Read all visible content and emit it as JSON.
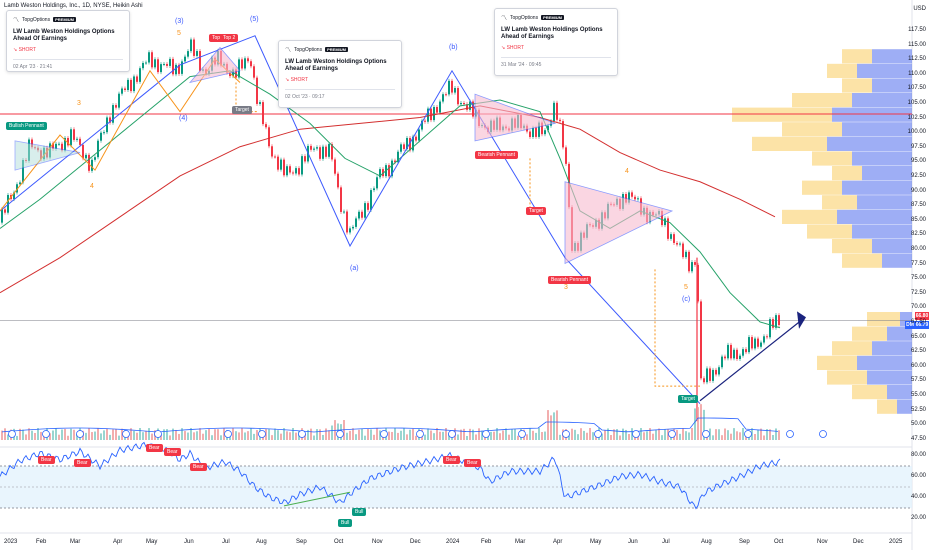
{
  "header": {
    "symbol_title": "Lamb Weston Holdings, Inc., 1D, NYSE, Heikin Ashi",
    "currency": "USD"
  },
  "ideas": [
    {
      "brand": "TopgOptions",
      "badge": "PREMIUM",
      "title": "LW Lamb Weston Holdings Options Ahead Of Earnings",
      "direction": "SHORT",
      "date": "02 Apr '23 · 21:41"
    },
    {
      "brand": "TopgOptions",
      "badge": "PREMIUM",
      "title": "LW Lamb Weston Holdings Options Ahead of Earnings",
      "direction": "SHORT",
      "date": "02 Oct '23 · 09:17"
    },
    {
      "brand": "TopgOptions",
      "badge": "PREMIUM",
      "title": "LW Lamb Weston Holdings Options Ahead of Earnings",
      "direction": "SHORT",
      "date": "31 Mar '24 · 09:45"
    }
  ],
  "price_axis": [
    "117.50",
    "115.00",
    "112.50",
    "110.00",
    "107.50",
    "105.00",
    "102.50",
    "100.00",
    "97.50",
    "95.00",
    "92.50",
    "90.00",
    "87.50",
    "85.00",
    "82.50",
    "80.00",
    "77.50",
    "75.00",
    "72.50",
    "70.00",
    "67.50",
    "65.00",
    "62.50",
    "60.00",
    "57.50",
    "55.00",
    "52.50",
    "50.00",
    "47.50"
  ],
  "rsi_axis": [
    "80.00",
    "60.00",
    "40.00",
    "20.00"
  ],
  "time_axis": [
    "2023",
    "Feb",
    "Mar",
    "Apr",
    "May",
    "Jun",
    "Jul",
    "Aug",
    "Sep",
    "Oct",
    "Nov",
    "Dec",
    "2024",
    "Feb",
    "Mar",
    "Apr",
    "May",
    "Jun",
    "Jul",
    "Aug",
    "Sep",
    "Oct",
    "Nov",
    "Dec",
    "2025"
  ],
  "price_badges": {
    "last": "66.80",
    "dm": "DM",
    "ema": "66.79"
  },
  "wave_labels": {
    "w3_top": "(3)",
    "w5_top": "(5)",
    "w4": "(4)",
    "wb": "(b)",
    "wa": "(a)",
    "wc": "(c)",
    "n5a": "5",
    "n3": "3",
    "n4a": "4",
    "n4b": "4",
    "n3b": "3",
    "n5b": "5"
  },
  "tags": {
    "bullish_pennant": "Bullish Pennant",
    "top": "Top",
    "top2": "Top 2",
    "target1": "Target",
    "bearish_pennant1": "Bearish Pennant",
    "target2": "Target",
    "bearish_pennant2": "Bearish Pennant",
    "target3": "Target",
    "bear": "Bear",
    "bull": "Bull"
  },
  "colors": {
    "candle_up": "#089981",
    "candle_down": "#f23645",
    "ma_red": "#d32f2f",
    "ma_green": "#26a269",
    "wave_blue": "#3d5afe",
    "volprof_yellow": "#f9c74f",
    "volprof_blue": "#4f6bed",
    "rsi_line": "#2962ff"
  }
}
